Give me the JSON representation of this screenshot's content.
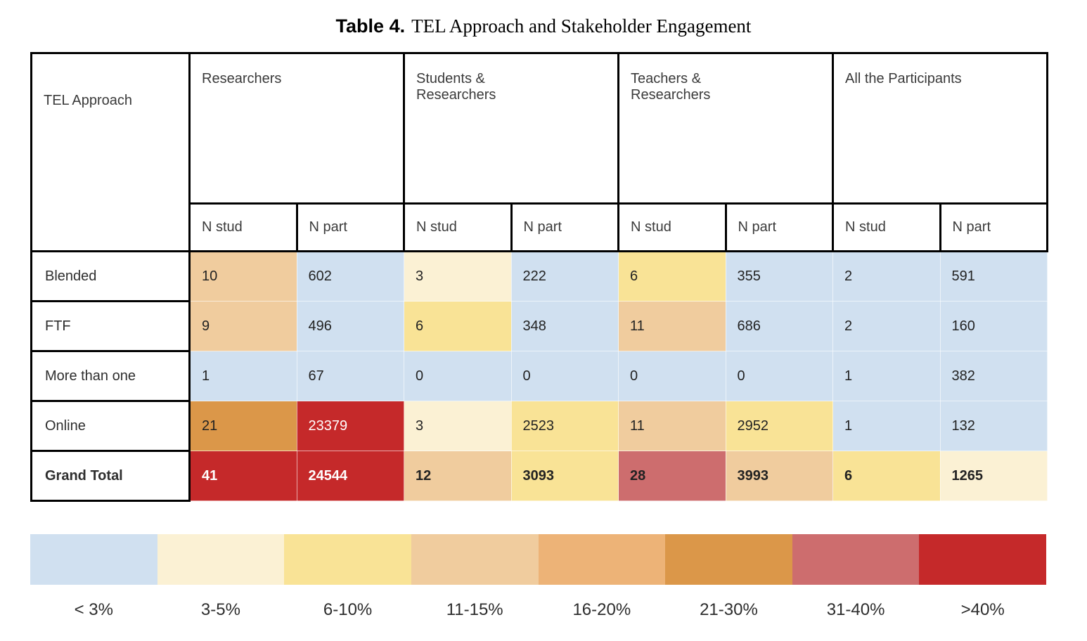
{
  "title": {
    "label": "Table 4.",
    "text": "TEL Approach and Stakeholder Engagement"
  },
  "chart_data": {
    "type": "table",
    "subtype": "heatmap-table",
    "title": "Table 4. TEL Approach and Stakeholder Engagement",
    "corner_header": "TEL Approach",
    "column_groups": [
      "Researchers",
      "Students &\nResearchers",
      "Teachers &\nResearchers",
      "All the Participants"
    ],
    "sub_columns": [
      "N stud",
      "N part"
    ],
    "rows": [
      {
        "label": "Blended",
        "bold": false,
        "cells": [
          {
            "v": "10",
            "bin": "p11_15",
            "light": false
          },
          {
            "v": "602",
            "bin": "lt3",
            "light": false
          },
          {
            "v": "3",
            "bin": "p3_5",
            "light": false
          },
          {
            "v": "222",
            "bin": "lt3",
            "light": false
          },
          {
            "v": "6",
            "bin": "p6_10",
            "light": false
          },
          {
            "v": "355",
            "bin": "lt3",
            "light": false
          },
          {
            "v": "2",
            "bin": "lt3",
            "light": false
          },
          {
            "v": "591",
            "bin": "lt3",
            "light": false
          }
        ]
      },
      {
        "label": "FTF",
        "bold": false,
        "cells": [
          {
            "v": "9",
            "bin": "p11_15",
            "light": false
          },
          {
            "v": "496",
            "bin": "lt3",
            "light": false
          },
          {
            "v": "6",
            "bin": "p6_10",
            "light": false
          },
          {
            "v": "348",
            "bin": "lt3",
            "light": false
          },
          {
            "v": "11",
            "bin": "p11_15",
            "light": false
          },
          {
            "v": "686",
            "bin": "lt3",
            "light": false
          },
          {
            "v": "2",
            "bin": "lt3",
            "light": false
          },
          {
            "v": "160",
            "bin": "lt3",
            "light": false
          }
        ]
      },
      {
        "label": "More than one",
        "bold": false,
        "cells": [
          {
            "v": "1",
            "bin": "lt3",
            "light": false
          },
          {
            "v": "67",
            "bin": "lt3",
            "light": false
          },
          {
            "v": "0",
            "bin": "lt3",
            "light": false
          },
          {
            "v": "0",
            "bin": "lt3",
            "light": false
          },
          {
            "v": "0",
            "bin": "lt3",
            "light": false
          },
          {
            "v": "0",
            "bin": "lt3",
            "light": false
          },
          {
            "v": "1",
            "bin": "lt3",
            "light": false
          },
          {
            "v": "382",
            "bin": "lt3",
            "light": false
          }
        ]
      },
      {
        "label": "Online",
        "bold": false,
        "cells": [
          {
            "v": "21",
            "bin": "p21_30",
            "light": false
          },
          {
            "v": "23379",
            "bin": "gt40",
            "light": true
          },
          {
            "v": "3",
            "bin": "p3_5",
            "light": false
          },
          {
            "v": "2523",
            "bin": "p6_10",
            "light": false
          },
          {
            "v": "11",
            "bin": "p11_15",
            "light": false
          },
          {
            "v": "2952",
            "bin": "p6_10",
            "light": false
          },
          {
            "v": "1",
            "bin": "lt3",
            "light": false
          },
          {
            "v": "132",
            "bin": "lt3",
            "light": false
          }
        ]
      },
      {
        "label": "Grand Total",
        "bold": true,
        "cells": [
          {
            "v": "41",
            "bin": "gt40",
            "light": true
          },
          {
            "v": "24544",
            "bin": "gt40",
            "light": true
          },
          {
            "v": "12",
            "bin": "p11_15",
            "light": false
          },
          {
            "v": "3093",
            "bin": "p6_10",
            "light": false
          },
          {
            "v": "28",
            "bin": "p31_40",
            "light": false
          },
          {
            "v": "3993",
            "bin": "p11_15",
            "light": false
          },
          {
            "v": "6",
            "bin": "p6_10",
            "light": false
          },
          {
            "v": "1265",
            "bin": "p3_5",
            "light": false
          }
        ]
      }
    ],
    "legend": {
      "position": "bottom",
      "bins": [
        {
          "id": "lt3",
          "label": "< 3%",
          "color": "#D0E0F0"
        },
        {
          "id": "p3_5",
          "label": "3-5%",
          "color": "#FBF1D4"
        },
        {
          "id": "p6_10",
          "label": "6-10%",
          "color": "#F9E396"
        },
        {
          "id": "p11_15",
          "label": "11-15%",
          "color": "#F0CC9E"
        },
        {
          "id": "p16_20",
          "label": "16-20%",
          "color": "#EDB377"
        },
        {
          "id": "p21_30",
          "label": "21-30%",
          "color": "#DB9749"
        },
        {
          "id": "p31_40",
          "label": "31-40%",
          "color": "#CD6D6E"
        },
        {
          "id": "gt40",
          "label": ">40%",
          "color": "#C5292A"
        }
      ]
    }
  }
}
